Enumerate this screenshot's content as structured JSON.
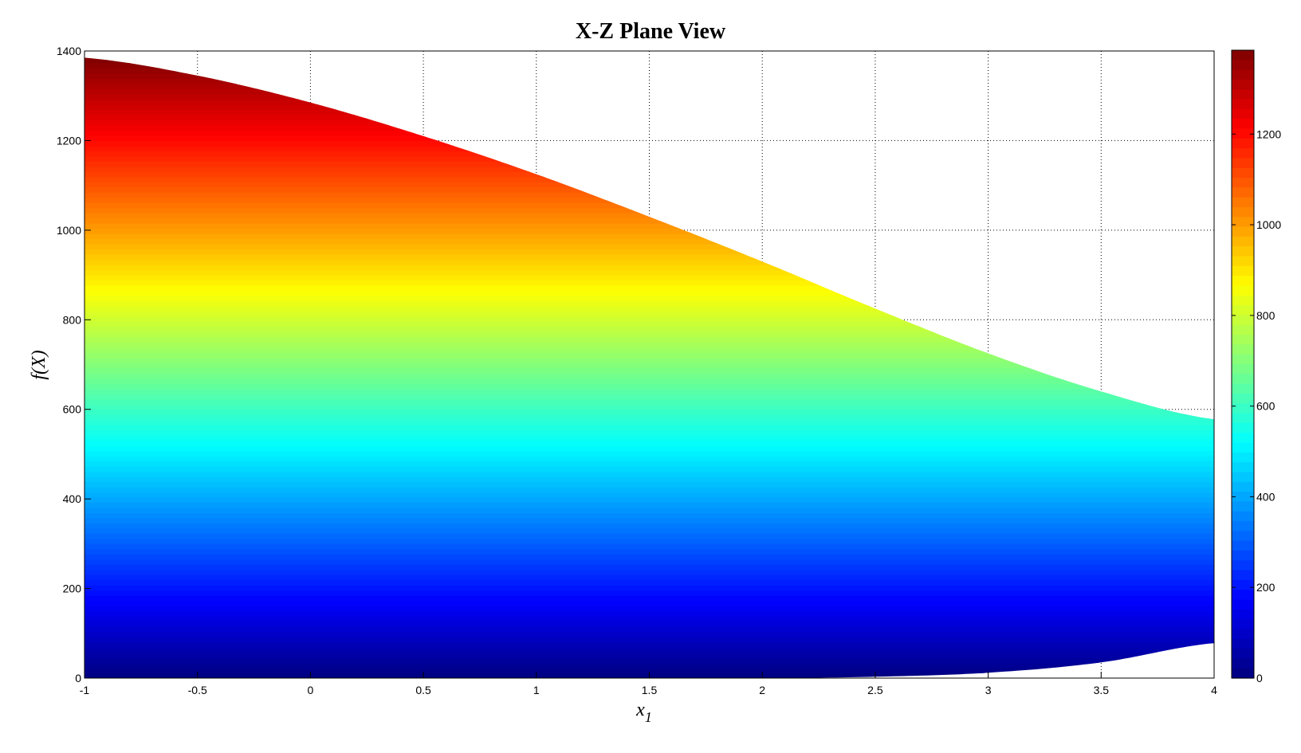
{
  "chart_data": {
    "type": "area",
    "title": "X-Z Plane View",
    "xlabel": "x",
    "xlabel_subscript": "1",
    "ylabel": "f(X)",
    "xlim": [
      -1,
      4
    ],
    "ylim": [
      0,
      1400
    ],
    "xticks": [
      "-1",
      "-0.5",
      "0",
      "0.5",
      "1",
      "1.5",
      "2",
      "2.5",
      "3",
      "3.5",
      "4"
    ],
    "yticks": [
      "0",
      "200",
      "400",
      "600",
      "800",
      "1000",
      "1200",
      "1400"
    ],
    "grid": true,
    "colormap": "jet",
    "fill_colored_by": "y",
    "upper_boundary": {
      "x": [
        -1,
        -0.5,
        0,
        0.5,
        1,
        1.5,
        2,
        2.5,
        3,
        3.5,
        4
      ],
      "y": [
        1385,
        1345,
        1285,
        1210,
        1125,
        1030,
        930,
        825,
        725,
        640,
        578
      ]
    },
    "lower_boundary": {
      "x": [
        -1,
        -0.5,
        0,
        0.5,
        1,
        1.5,
        2,
        2.5,
        3,
        3.5,
        4
      ],
      "y": [
        0,
        0,
        0,
        0,
        0,
        0,
        0,
        3,
        12,
        35,
        78
      ]
    },
    "colorbar": {
      "range": [
        0,
        1385
      ],
      "ticks": [
        "0",
        "200",
        "400",
        "600",
        "800",
        "1000",
        "1200"
      ]
    }
  }
}
